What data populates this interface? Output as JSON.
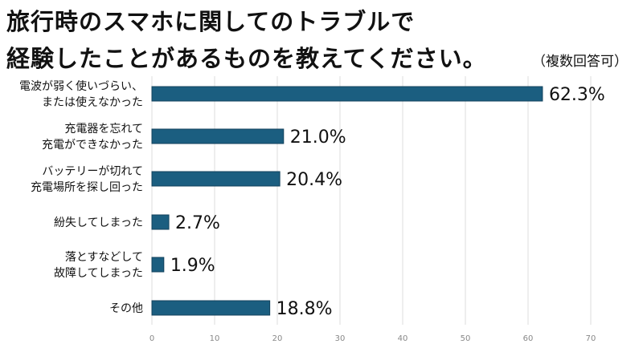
{
  "chart_data": {
    "type": "bar",
    "orientation": "horizontal",
    "title_lines": [
      "旅行時のスマホに関してのトラブルで",
      "経験したことがあるものを教えてください。"
    ],
    "subtitle": "（複数回答可）",
    "categories": [
      [
        "電波が弱く使いづらい、",
        "または使えなかった"
      ],
      [
        "充電器を忘れて",
        "充電ができなかった"
      ],
      [
        "バッテリーが切れて",
        "充電場所を探し回った"
      ],
      [
        "紛失してしまった"
      ],
      [
        "落とすなどして",
        "故障してしまった"
      ],
      [
        "その他"
      ]
    ],
    "values": [
      62.3,
      21.0,
      20.4,
      2.7,
      1.9,
      18.8
    ],
    "data_labels": [
      "62.3%",
      "21.0%",
      "20.4%",
      "2.7%",
      "1.9%",
      "18.8%"
    ],
    "xlim": [
      0,
      70
    ],
    "xticks": [
      0,
      10,
      20,
      30,
      40,
      50,
      60,
      70
    ],
    "grid": true,
    "bar_color": "#1b5e80",
    "bar_border": "#13425c"
  }
}
